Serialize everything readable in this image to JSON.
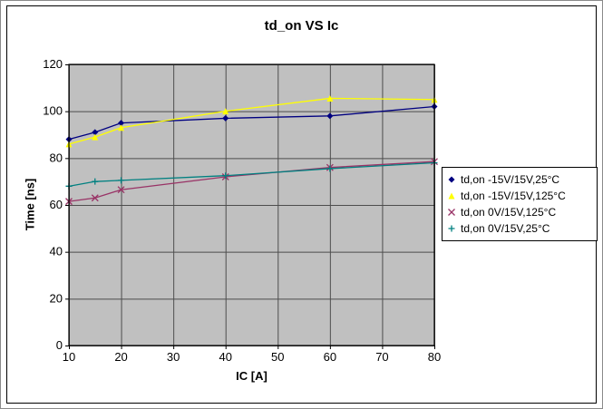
{
  "chart_data": {
    "type": "line",
    "title": "td_on VS Ic",
    "xlabel": "IC [A]",
    "ylabel": "Time [ns]",
    "x": [
      10,
      15,
      20,
      40,
      60,
      80
    ],
    "xlim": [
      10,
      80
    ],
    "ylim": [
      0,
      120
    ],
    "x_ticks": [
      10,
      20,
      30,
      40,
      50,
      60,
      70,
      80
    ],
    "y_ticks": [
      0,
      20,
      40,
      60,
      80,
      100,
      120
    ],
    "grid": true,
    "legend_position": "right",
    "colors": {
      "plot_bg": "#c0c0c0",
      "grid": "#4d4d4d",
      "axis": "#000000",
      "chart_bg": "#ffffff"
    },
    "series": [
      {
        "name": "td,on -15V/15V,25°C",
        "marker": "diamond",
        "color": "#000080",
        "values": [
          88,
          91,
          95,
          97,
          98,
          102
        ]
      },
      {
        "name": "td,on -15V/15V,125°C",
        "marker": "triangle",
        "color": "#ffff00",
        "values": [
          86,
          89,
          93,
          100,
          105.5,
          105
        ]
      },
      {
        "name": "td,on 0V/15V,125°C",
        "marker": "x",
        "color": "#993366",
        "values": [
          61.5,
          63,
          66.5,
          72,
          76,
          78.5
        ]
      },
      {
        "name": "td,on 0V/15V,25°C",
        "marker": "plus",
        "color": "#008080",
        "values": [
          68,
          70,
          70.5,
          72.5,
          75.5,
          78
        ]
      }
    ]
  }
}
